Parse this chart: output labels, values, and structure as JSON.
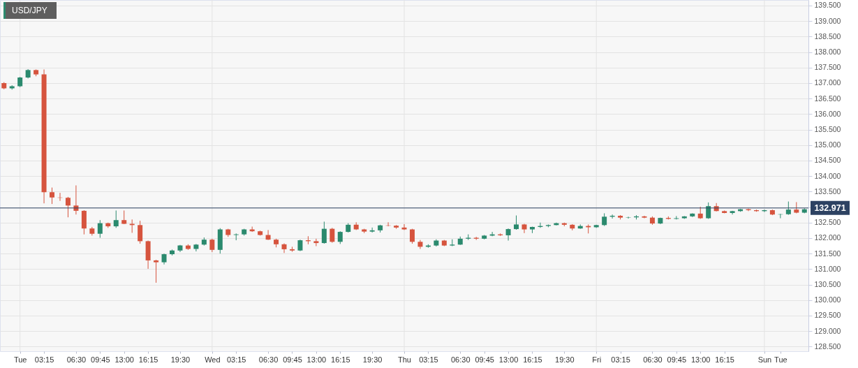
{
  "chart_data": {
    "type": "candlestick",
    "title": "USD/JPY",
    "categories": [
      null,
      null,
      "Tue",
      null,
      null,
      "03:15",
      null,
      null,
      null,
      "06:30",
      null,
      null,
      "09:45",
      null,
      null,
      "13:00",
      null,
      null,
      "16:15",
      null,
      null,
      null,
      "19:30",
      null,
      null,
      null,
      "Wed",
      null,
      null,
      "03:15",
      null,
      null,
      null,
      "06:30",
      null,
      null,
      "09:45",
      null,
      null,
      "13:00",
      null,
      null,
      "16:15",
      null,
      null,
      null,
      "19:30",
      null,
      null,
      null,
      "Thu",
      null,
      null,
      "03:15",
      null,
      null,
      null,
      "06:30",
      null,
      null,
      "09:45",
      null,
      null,
      "13:00",
      null,
      null,
      "16:15",
      null,
      null,
      null,
      "19:30",
      null,
      null,
      null,
      "Fri",
      null,
      null,
      "03:15",
      null,
      null,
      null,
      "06:30",
      null,
      null,
      "09:45",
      null,
      null,
      "13:00",
      null,
      null,
      "16:15",
      null,
      null,
      null,
      null,
      "Sun",
      null,
      "Tue",
      null,
      null,
      null
    ],
    "ohlc": [
      [
        137.0,
        137.03,
        136.8,
        136.83
      ],
      [
        136.83,
        136.93,
        136.79,
        136.9
      ],
      [
        136.9,
        137.2,
        136.87,
        137.18
      ],
      [
        137.18,
        137.45,
        137.15,
        137.42
      ],
      [
        137.42,
        137.44,
        137.22,
        137.28
      ],
      [
        137.28,
        137.44,
        133.12,
        133.48
      ],
      [
        133.48,
        133.63,
        133.1,
        133.31
      ],
      [
        133.31,
        133.46,
        133.2,
        133.3
      ],
      [
        133.3,
        133.33,
        132.67,
        133.05
      ],
      [
        133.05,
        133.7,
        132.76,
        132.88
      ],
      [
        132.88,
        132.9,
        132.12,
        132.31
      ],
      [
        132.31,
        132.36,
        132.08,
        132.14
      ],
      [
        132.14,
        132.58,
        132.01,
        132.48
      ],
      [
        132.48,
        132.5,
        132.33,
        132.38
      ],
      [
        132.38,
        132.89,
        132.33,
        132.58
      ],
      [
        132.58,
        132.89,
        132.45,
        132.46
      ],
      [
        132.46,
        132.6,
        132.17,
        132.42
      ],
      [
        132.42,
        132.56,
        131.82,
        131.9
      ],
      [
        131.9,
        131.92,
        131.01,
        131.28
      ],
      [
        131.28,
        131.3,
        130.56,
        131.22
      ],
      [
        131.22,
        131.5,
        131.15,
        131.48
      ],
      [
        131.48,
        131.63,
        131.44,
        131.6
      ],
      [
        131.6,
        131.78,
        131.55,
        131.76
      ],
      [
        131.76,
        131.8,
        131.62,
        131.65
      ],
      [
        131.65,
        131.81,
        131.57,
        131.79
      ],
      [
        131.79,
        132.02,
        131.76,
        131.95
      ],
      [
        131.95,
        131.98,
        131.55,
        131.62
      ],
      [
        131.62,
        132.32,
        131.5,
        132.28
      ],
      [
        132.28,
        132.3,
        132.04,
        132.1
      ],
      [
        132.1,
        132.15,
        131.93,
        132.12
      ],
      [
        132.12,
        132.3,
        132.08,
        132.28
      ],
      [
        132.28,
        132.37,
        132.2,
        132.22
      ],
      [
        132.22,
        132.24,
        132.08,
        132.1
      ],
      [
        132.1,
        132.26,
        131.94,
        131.95
      ],
      [
        131.95,
        131.98,
        131.7,
        131.8
      ],
      [
        131.8,
        131.83,
        131.52,
        131.64
      ],
      [
        131.64,
        131.72,
        131.56,
        131.6
      ],
      [
        131.6,
        131.95,
        131.58,
        131.93
      ],
      [
        131.93,
        132.06,
        131.8,
        131.9
      ],
      [
        131.9,
        131.98,
        131.74,
        131.84
      ],
      [
        131.84,
        132.53,
        131.82,
        132.3
      ],
      [
        132.3,
        132.33,
        131.85,
        131.88
      ],
      [
        131.88,
        132.22,
        131.81,
        132.2
      ],
      [
        132.2,
        132.48,
        132.18,
        132.43
      ],
      [
        132.43,
        132.51,
        132.26,
        132.28
      ],
      [
        132.28,
        132.3,
        132.16,
        132.21
      ],
      [
        132.21,
        132.34,
        132.18,
        132.25
      ],
      [
        132.25,
        132.43,
        132.18,
        132.41
      ],
      [
        132.41,
        132.51,
        132.38,
        132.4
      ],
      [
        132.4,
        132.42,
        132.3,
        132.34
      ],
      [
        132.34,
        132.45,
        132.26,
        132.28
      ],
      [
        132.28,
        132.3,
        131.82,
        131.88
      ],
      [
        131.88,
        131.94,
        131.65,
        131.72
      ],
      [
        131.72,
        131.8,
        131.69,
        131.76
      ],
      [
        131.76,
        131.96,
        131.73,
        131.92
      ],
      [
        131.92,
        131.94,
        131.74,
        131.76
      ],
      [
        131.76,
        131.96,
        131.74,
        131.79
      ],
      [
        131.79,
        132.05,
        131.78,
        131.98
      ],
      [
        131.98,
        132.12,
        131.94,
        132.01
      ],
      [
        132.01,
        132.04,
        131.94,
        131.98
      ],
      [
        131.98,
        132.1,
        131.96,
        132.08
      ],
      [
        132.08,
        132.2,
        132.06,
        132.12
      ],
      [
        132.12,
        132.15,
        132.07,
        132.09
      ],
      [
        132.09,
        132.31,
        131.92,
        132.29
      ],
      [
        132.29,
        132.73,
        132.27,
        132.44
      ],
      [
        132.44,
        132.46,
        132.16,
        132.28
      ],
      [
        132.28,
        132.37,
        132.16,
        132.36
      ],
      [
        132.36,
        132.5,
        132.33,
        132.39
      ],
      [
        132.39,
        132.44,
        132.35,
        132.42
      ],
      [
        132.42,
        132.5,
        132.41,
        132.48
      ],
      [
        132.48,
        132.5,
        132.38,
        132.43
      ],
      [
        132.43,
        132.45,
        132.25,
        132.31
      ],
      [
        132.31,
        132.44,
        132.3,
        132.39
      ],
      [
        132.39,
        132.44,
        132.15,
        132.35
      ],
      [
        132.35,
        132.43,
        132.33,
        132.42
      ],
      [
        132.42,
        132.8,
        132.39,
        132.69
      ],
      [
        132.69,
        132.76,
        132.63,
        132.72
      ],
      [
        132.72,
        132.74,
        132.6,
        132.66
      ],
      [
        132.66,
        132.69,
        132.63,
        132.67
      ],
      [
        132.67,
        132.74,
        132.6,
        132.7
      ],
      [
        132.7,
        132.72,
        132.64,
        132.66
      ],
      [
        132.66,
        132.7,
        132.43,
        132.47
      ],
      [
        132.47,
        132.66,
        132.45,
        132.65
      ],
      [
        132.65,
        132.7,
        132.6,
        132.62
      ],
      [
        132.62,
        132.71,
        132.6,
        132.64
      ],
      [
        132.64,
        132.71,
        132.62,
        132.7
      ],
      [
        132.7,
        132.8,
        132.68,
        132.79
      ],
      [
        132.79,
        133.01,
        132.62,
        132.64
      ],
      [
        132.64,
        133.15,
        132.62,
        133.03
      ],
      [
        133.03,
        133.13,
        132.86,
        132.87
      ],
      [
        132.87,
        132.89,
        132.8,
        132.81
      ],
      [
        132.81,
        132.88,
        132.76,
        132.87
      ],
      [
        132.87,
        132.94,
        132.85,
        132.93
      ],
      [
        132.93,
        132.95,
        132.87,
        132.9
      ],
      [
        132.9,
        132.92,
        132.85,
        132.87
      ],
      [
        132.87,
        132.92,
        132.84,
        132.9
      ],
      [
        132.9,
        132.92,
        132.74,
        132.76
      ],
      [
        132.76,
        132.78,
        132.64,
        132.77
      ],
      [
        132.77,
        133.18,
        132.75,
        132.92
      ],
      [
        132.92,
        133.16,
        132.8,
        132.82
      ],
      [
        132.82,
        132.96,
        132.8,
        132.93
      ]
    ],
    "colors": [
      "#d6543e",
      "#2b8a6e",
      "#2b8a6e",
      "#2b8a6e",
      "#d6543e",
      "#d6543e",
      "#d6543e",
      "#d6543e",
      "#d6543e",
      "#d6543e",
      "#d6543e",
      "#d6543e",
      "#2b8a6e",
      "#d6543e",
      "#2b8a6e",
      "#d6543e",
      "#d6543e",
      "#d6543e",
      "#d6543e",
      "#d6543e",
      "#2b8a6e",
      "#2b8a6e",
      "#2b8a6e",
      "#d6543e",
      "#2b8a6e",
      "#2b8a6e",
      "#d6543e",
      "#2b8a6e",
      "#d6543e",
      "#2b8a6e",
      "#2b8a6e",
      "#d6543e",
      "#d6543e",
      "#d6543e",
      "#d6543e",
      "#d6543e",
      "#d6543e",
      "#2b8a6e",
      "#d6543e",
      "#d6543e",
      "#2b8a6e",
      "#d6543e",
      "#2b8a6e",
      "#2b8a6e",
      "#d6543e",
      "#d6543e",
      "#2b8a6e",
      "#2b8a6e",
      "#d6543e",
      "#d6543e",
      "#d6543e",
      "#d6543e",
      "#d6543e",
      "#2b8a6e",
      "#2b8a6e",
      "#d6543e",
      "#2b8a6e",
      "#2b8a6e",
      "#2b8a6e",
      "#d6543e",
      "#2b8a6e",
      "#2b8a6e",
      "#d6543e",
      "#2b8a6e",
      "#2b8a6e",
      "#d6543e",
      "#2b8a6e",
      "#2b8a6e",
      "#2b8a6e",
      "#2b8a6e",
      "#d6543e",
      "#d6543e",
      "#2b8a6e",
      "#d6543e",
      "#2b8a6e",
      "#2b8a6e",
      "#2b8a6e",
      "#d6543e",
      "#2b8a6e",
      "#2b8a6e",
      "#d6543e",
      "#d6543e",
      "#2b8a6e",
      "#d6543e",
      "#2b8a6e",
      "#2b8a6e",
      "#2b8a6e",
      "#d6543e",
      "#2b8a6e",
      "#d6543e",
      "#d6543e",
      "#2b8a6e",
      "#2b8a6e",
      "#d6543e",
      "#d6543e",
      "#2b8a6e",
      "#d6543e",
      "#2b8a6e",
      "#2b8a6e",
      "#d6543e",
      "#2b8a6e"
    ],
    "ylim": [
      128.35,
      139.68
    ],
    "yticks": [
      {
        "value": 128.5,
        "label": "128.500"
      },
      {
        "value": 129,
        "label": "129.000"
      },
      {
        "value": 129.5,
        "label": "129.500"
      },
      {
        "value": 130,
        "label": "130.000"
      },
      {
        "value": 130.5,
        "label": "130.500"
      },
      {
        "value": 131,
        "label": "131.000"
      },
      {
        "value": 131.5,
        "label": "131.500"
      },
      {
        "value": 132,
        "label": "132.000"
      },
      {
        "value": 132.5,
        "label": "132.500"
      },
      {
        "value": 133,
        "label": null
      },
      {
        "value": 133.5,
        "label": "133.500"
      },
      {
        "value": 134,
        "label": "134.000"
      },
      {
        "value": 134.5,
        "label": "134.500"
      },
      {
        "value": 135,
        "label": "135.000"
      },
      {
        "value": 135.5,
        "label": "135.500"
      },
      {
        "value": 136,
        "label": "136.000"
      },
      {
        "value": 136.5,
        "label": "136.500"
      },
      {
        "value": 137,
        "label": "137.000"
      },
      {
        "value": 137.5,
        "label": "137.500"
      },
      {
        "value": 138,
        "label": "138.000"
      },
      {
        "value": 138.5,
        "label": "138.500"
      },
      {
        "value": 139,
        "label": "139.000"
      },
      {
        "value": 139.5,
        "label": "139.500"
      }
    ],
    "grid": "y",
    "ref_lines": [
      {
        "axis": "x",
        "value": "Tue",
        "color": "#e3e3e3"
      },
      {
        "axis": "x",
        "value": "Wed",
        "color": "#e3e3e3"
      },
      {
        "axis": "x",
        "value": "Thu",
        "color": "#e3e3e3"
      },
      {
        "axis": "x",
        "value": "Fri",
        "color": "#e3e3e3"
      },
      {
        "axis": "x",
        "value": "Sun",
        "color": "#e3e3e3"
      },
      {
        "axis": "y",
        "value": 132.971,
        "label": "132.971",
        "color": "#2d4262"
      }
    ]
  }
}
